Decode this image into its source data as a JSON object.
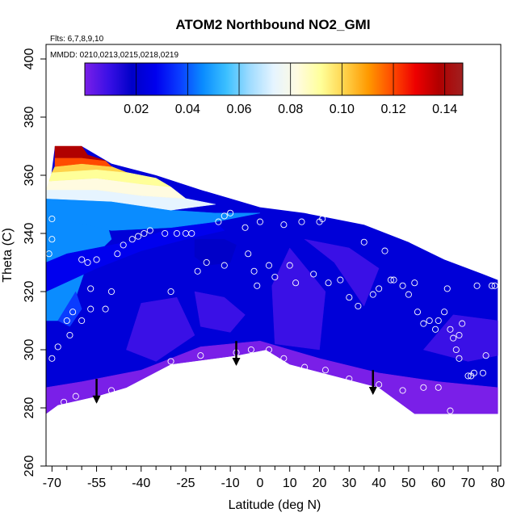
{
  "chart_data": {
    "type": "heatmap",
    "title": "ATOM2 Northbound NO2_GMI",
    "annotations": [
      "Flts: 6,7,8,9,10",
      "MMDD: 0210,0213,0215,0218,0219"
    ],
    "xlabel": "Latitude (deg N)",
    "ylabel": "Theta (C)",
    "xlim": [
      -72,
      81
    ],
    "ylim": [
      260,
      405
    ],
    "x_ticks": [
      -70,
      -55,
      -40,
      -25,
      -10,
      0,
      10,
      20,
      30,
      40,
      50,
      60,
      70,
      80
    ],
    "x_tick_labels": [
      "-70",
      "-55",
      "-40",
      "-25",
      "-10",
      "0",
      "10",
      "20",
      "30",
      "40",
      "50",
      "60",
      "70",
      "80"
    ],
    "y_ticks": [
      260,
      280,
      300,
      320,
      340,
      360,
      380,
      400
    ],
    "y_tick_labels": [
      "260",
      "280",
      "300",
      "320",
      "340",
      "360",
      "380",
      "400"
    ],
    "colorbar": {
      "min": 0.0,
      "max": 0.147,
      "ticks": [
        0.02,
        0.04,
        0.06,
        0.08,
        0.1,
        0.12,
        0.14
      ],
      "tick_labels": [
        "0.02",
        "0.04",
        "0.06",
        "0.08",
        "0.10",
        "0.12",
        "0.14"
      ],
      "colors": [
        "#7a1fe8",
        "#3a10e6",
        "#0000c8",
        "#0000ee",
        "#0a3cff",
        "#0a8cff",
        "#3cc0ff",
        "#a0dcff",
        "#e6f4ff",
        "#fffbe0",
        "#ffff99",
        "#ffd24a",
        "#ff9900",
        "#ff4b00",
        "#ee0000",
        "#b00000",
        "#a02020"
      ]
    },
    "arrows_x": [
      -55,
      -8,
      38
    ],
    "outline_lower": [
      [
        -72,
        278
      ],
      [
        -68,
        281
      ],
      [
        -55,
        284
      ],
      [
        -45,
        287
      ],
      [
        -30,
        295
      ],
      [
        -8,
        298
      ],
      [
        2,
        300
      ],
      [
        10,
        295
      ],
      [
        25,
        291
      ],
      [
        40,
        287
      ],
      [
        52,
        278
      ],
      [
        80,
        278
      ]
    ],
    "outline_upper": [
      [
        -72,
        346
      ],
      [
        -69,
        370
      ],
      [
        -60,
        370
      ],
      [
        -50,
        364
      ],
      [
        -35,
        360
      ],
      [
        -20,
        355
      ],
      [
        -10,
        352
      ],
      [
        0,
        349
      ],
      [
        15,
        347
      ],
      [
        25,
        345
      ],
      [
        35,
        343
      ],
      [
        50,
        337
      ],
      [
        62,
        331
      ],
      [
        75,
        326
      ],
      [
        80,
        324
      ]
    ],
    "field_regions": [
      {
        "value": 0.004,
        "poly": [
          [
            -72,
            278
          ],
          [
            -68,
            281
          ],
          [
            -55,
            284
          ],
          [
            -45,
            287
          ],
          [
            -30,
            295
          ],
          [
            -8,
            298
          ],
          [
            2,
            300
          ],
          [
            10,
            295
          ],
          [
            25,
            291
          ],
          [
            40,
            287
          ],
          [
            52,
            278
          ],
          [
            80,
            278
          ],
          [
            80,
            287
          ],
          [
            60,
            289
          ],
          [
            40,
            292
          ],
          [
            20,
            297
          ],
          [
            0,
            303
          ],
          [
            -20,
            301
          ],
          [
            -40,
            293
          ],
          [
            -60,
            289
          ],
          [
            -72,
            287
          ]
        ]
      },
      {
        "value": 0.009,
        "poly": [
          [
            -45,
            300
          ],
          [
            -35,
            296
          ],
          [
            -22,
            305
          ],
          [
            -28,
            318
          ],
          [
            -40,
            316
          ]
        ]
      },
      {
        "value": 0.009,
        "poly": [
          [
            5,
            302
          ],
          [
            20,
            300
          ],
          [
            22,
            320
          ],
          [
            10,
            335
          ],
          [
            4,
            322
          ]
        ]
      },
      {
        "value": 0.009,
        "poly": [
          [
            15,
            338
          ],
          [
            30,
            335
          ],
          [
            40,
            328
          ],
          [
            35,
            315
          ],
          [
            25,
            330
          ]
        ]
      },
      {
        "value": 0.009,
        "poly": [
          [
            55,
            300
          ],
          [
            70,
            296
          ],
          [
            80,
            298
          ],
          [
            80,
            310
          ],
          [
            65,
            312
          ]
        ]
      },
      {
        "value": 0.011,
        "poly": [
          [
            -22,
            320
          ],
          [
            -12,
            318
          ],
          [
            -5,
            312
          ],
          [
            -10,
            306
          ],
          [
            -20,
            308
          ]
        ]
      },
      {
        "value": 0.047,
        "poly": [
          [
            -72,
            310
          ],
          [
            -68,
            310
          ],
          [
            -62,
            318
          ],
          [
            -58,
            330
          ],
          [
            -50,
            338
          ],
          [
            -52,
            345
          ],
          [
            -72,
            346
          ]
        ]
      },
      {
        "value": 0.04,
        "poly": [
          [
            -68,
            310
          ],
          [
            -64,
            308
          ],
          [
            -60,
            314
          ],
          [
            -62,
            320
          ]
        ]
      },
      {
        "value": 0.03,
        "poly": [
          [
            -72,
            330
          ],
          [
            -65,
            333
          ],
          [
            -55,
            335
          ],
          [
            -40,
            338
          ],
          [
            -30,
            342
          ],
          [
            -15,
            344
          ],
          [
            -12,
            341
          ],
          [
            -25,
            338
          ],
          [
            -40,
            334
          ],
          [
            -55,
            328
          ],
          [
            -72,
            320
          ]
        ]
      },
      {
        "value": 0.025,
        "poly": [
          [
            -22,
            338
          ],
          [
            -12,
            338
          ],
          [
            -8,
            336
          ],
          [
            -10,
            330
          ],
          [
            -18,
            329
          ],
          [
            -22,
            332
          ]
        ]
      },
      {
        "value": 0.05,
        "poly": [
          [
            -72,
            346
          ],
          [
            -72,
            352
          ],
          [
            -50,
            351
          ],
          [
            -30,
            348
          ],
          [
            -15,
            347
          ],
          [
            0,
            347
          ],
          [
            -15,
            344
          ],
          [
            -30,
            342
          ],
          [
            -50,
            341
          ]
        ]
      },
      {
        "value": 0.072,
        "poly": [
          [
            -72,
            352
          ],
          [
            -72,
            355
          ],
          [
            -55,
            355
          ],
          [
            -40,
            353
          ],
          [
            -25,
            352
          ],
          [
            -15,
            350
          ],
          [
            -30,
            348
          ],
          [
            -50,
            351
          ]
        ]
      },
      {
        "value": 0.082,
        "poly": [
          [
            -72,
            355
          ],
          [
            -71,
            358
          ],
          [
            -55,
            359
          ],
          [
            -40,
            357
          ],
          [
            -30,
            356
          ],
          [
            -25,
            352
          ],
          [
            -40,
            353
          ],
          [
            -55,
            355
          ]
        ]
      },
      {
        "value": 0.09,
        "poly": [
          [
            -71,
            358
          ],
          [
            -70,
            361
          ],
          [
            -55,
            362
          ],
          [
            -45,
            361
          ],
          [
            -35,
            359
          ],
          [
            -30,
            356
          ],
          [
            -40,
            357
          ],
          [
            -55,
            359
          ]
        ]
      },
      {
        "value": 0.102,
        "poly": [
          [
            -70,
            361
          ],
          [
            -69,
            363
          ],
          [
            -60,
            364
          ],
          [
            -50,
            363
          ],
          [
            -45,
            361
          ],
          [
            -55,
            362
          ]
        ]
      },
      {
        "value": 0.115,
        "poly": [
          [
            -69,
            363
          ],
          [
            -69,
            366
          ],
          [
            -60,
            366
          ],
          [
            -52,
            365
          ],
          [
            -50,
            363
          ],
          [
            -60,
            364
          ]
        ]
      },
      {
        "value": 0.135,
        "poly": [
          [
            -69,
            366
          ],
          [
            -69,
            370
          ],
          [
            -60,
            370
          ],
          [
            -58,
            367
          ],
          [
            -52,
            365
          ],
          [
            -60,
            366
          ]
        ]
      }
    ],
    "sample_points": [
      [
        -69,
        278
      ],
      [
        -66,
        282
      ],
      [
        -62,
        284
      ],
      [
        -50,
        286
      ],
      [
        -30,
        296
      ],
      [
        -20,
        298
      ],
      [
        -8,
        299
      ],
      [
        -3,
        300
      ],
      [
        3,
        300
      ],
      [
        8,
        297
      ],
      [
        15,
        294
      ],
      [
        22,
        293
      ],
      [
        30,
        290
      ],
      [
        40,
        288
      ],
      [
        48,
        286
      ],
      [
        55,
        287
      ],
      [
        60,
        287
      ],
      [
        64,
        279
      ],
      [
        -70,
        297
      ],
      [
        -68,
        301
      ],
      [
        -64,
        305
      ],
      [
        -65,
        310
      ],
      [
        -63,
        313
      ],
      [
        -57,
        321
      ],
      [
        -52,
        314
      ],
      [
        -50,
        320
      ],
      [
        -30,
        320
      ],
      [
        -60,
        331
      ],
      [
        -58,
        330
      ],
      [
        -55,
        331
      ],
      [
        -48,
        333
      ],
      [
        -46,
        336
      ],
      [
        -43,
        338
      ],
      [
        -41,
        339
      ],
      [
        -39,
        340
      ],
      [
        -37,
        341
      ],
      [
        -32,
        340
      ],
      [
        -28,
        340
      ],
      [
        -25,
        340
      ],
      [
        -23,
        340
      ],
      [
        -21,
        327
      ],
      [
        -18,
        330
      ],
      [
        -14,
        344
      ],
      [
        -12,
        346
      ],
      [
        -10,
        347
      ],
      [
        -12,
        329
      ],
      [
        -5,
        342
      ],
      [
        -4,
        333
      ],
      [
        -2,
        327
      ],
      [
        -1,
        322
      ],
      [
        0,
        344
      ],
      [
        3,
        329
      ],
      [
        5,
        325
      ],
      [
        8,
        343
      ],
      [
        10,
        329
      ],
      [
        12,
        323
      ],
      [
        14,
        344
      ],
      [
        18,
        326
      ],
      [
        20,
        344
      ],
      [
        21,
        345
      ],
      [
        23,
        323
      ],
      [
        25,
        347
      ],
      [
        27,
        324
      ],
      [
        30,
        318
      ],
      [
        33,
        315
      ],
      [
        35,
        337
      ],
      [
        38,
        319
      ],
      [
        40,
        321
      ],
      [
        42,
        334
      ],
      [
        44,
        324
      ],
      [
        45,
        324
      ],
      [
        48,
        322
      ],
      [
        50,
        319
      ],
      [
        52,
        323
      ],
      [
        53,
        313
      ],
      [
        55,
        309
      ],
      [
        57,
        310
      ],
      [
        59,
        307
      ],
      [
        60,
        310
      ],
      [
        62,
        313
      ],
      [
        63,
        321
      ],
      [
        64,
        307
      ],
      [
        65,
        304
      ],
      [
        66,
        300
      ],
      [
        67,
        297
      ],
      [
        67,
        305
      ],
      [
        68,
        309
      ],
      [
        70,
        291
      ],
      [
        71,
        291
      ],
      [
        72,
        292
      ],
      [
        73,
        322
      ],
      [
        75,
        292
      ],
      [
        76,
        298
      ],
      [
        78,
        322
      ],
      [
        79,
        322
      ],
      [
        -70,
        345
      ],
      [
        -70,
        338
      ],
      [
        -71,
        333
      ],
      [
        -60,
        310
      ],
      [
        -57,
        314
      ]
    ]
  }
}
